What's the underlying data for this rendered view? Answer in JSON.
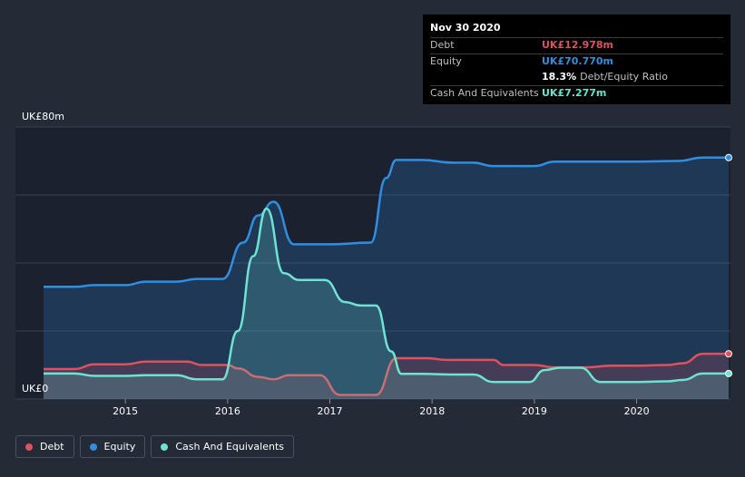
{
  "tooltip": {
    "date": "Nov 30 2020",
    "debt_label": "Debt",
    "debt_value": "UK£12.978m",
    "equity_label": "Equity",
    "equity_value": "UK£70.770m",
    "ratio_value": "18.3%",
    "ratio_label": "Debt/Equity Ratio",
    "cash_label": "Cash And Equivalents",
    "cash_value": "UK£7.277m"
  },
  "legend": {
    "debt": "Debt",
    "equity": "Equity",
    "cash": "Cash And Equivalents"
  },
  "colors": {
    "debt": "#e0505d",
    "equity": "#2f8ee0",
    "cash": "#6fe3d1"
  },
  "chart_data": {
    "type": "area",
    "ylabel_top": "UK£80m",
    "ylabel_bottom": "UK£0",
    "ylim": [
      0,
      80
    ],
    "xlim": [
      2014.2,
      2020.9
    ],
    "x_ticks": [
      2015,
      2016,
      2017,
      2018,
      2019,
      2020
    ],
    "x_tick_labels": [
      "2015",
      "2016",
      "2017",
      "2018",
      "2019",
      "2020"
    ],
    "grid": true,
    "legend_position": "bottom-left",
    "series": [
      {
        "name": "Debt",
        "key": "debt",
        "x": [
          2014.2,
          2014.5,
          2014.7,
          2015.0,
          2015.2,
          2015.4,
          2015.6,
          2015.75,
          2016.0,
          2016.1,
          2016.3,
          2016.45,
          2016.6,
          2016.9,
          2017.1,
          2017.3,
          2017.45,
          2017.65,
          2017.95,
          2018.15,
          2018.6,
          2018.7,
          2019.0,
          2019.2,
          2019.5,
          2019.75,
          2020.0,
          2020.3,
          2020.45,
          2020.65,
          2020.9
        ],
        "values": [
          8.8,
          8.8,
          10.2,
          10.2,
          11.0,
          11.0,
          11.0,
          10.0,
          10.0,
          9.0,
          6.5,
          5.8,
          7.0,
          7.0,
          1.2,
          1.2,
          1.2,
          12.0,
          12.0,
          11.5,
          11.5,
          10.0,
          10.0,
          9.3,
          9.3,
          9.8,
          9.8,
          10.0,
          10.5,
          13.3,
          13.3
        ]
      },
      {
        "name": "Equity",
        "key": "equity",
        "x": [
          2014.2,
          2014.5,
          2014.7,
          2015.0,
          2015.2,
          2015.5,
          2015.7,
          2015.95,
          2016.15,
          2016.3,
          2016.45,
          2016.65,
          2017.0,
          2017.4,
          2017.55,
          2017.65,
          2017.9,
          2018.2,
          2018.4,
          2018.6,
          2019.0,
          2019.2,
          2019.5,
          2020.0,
          2020.4,
          2020.65,
          2020.9
        ],
        "values": [
          33.0,
          33.0,
          33.5,
          33.5,
          34.5,
          34.5,
          35.3,
          35.3,
          46.0,
          54.0,
          58.0,
          45.5,
          45.5,
          46.0,
          65.0,
          70.3,
          70.3,
          69.5,
          69.5,
          68.5,
          68.5,
          69.8,
          69.8,
          69.8,
          70.0,
          71.0,
          71.0
        ]
      },
      {
        "name": "Cash And Equivalents",
        "key": "cash",
        "x": [
          2014.2,
          2014.5,
          2014.7,
          2015.0,
          2015.2,
          2015.5,
          2015.7,
          2015.95,
          2016.1,
          2016.25,
          2016.38,
          2016.55,
          2016.7,
          2016.95,
          2017.15,
          2017.3,
          2017.45,
          2017.6,
          2017.7,
          2017.9,
          2018.2,
          2018.4,
          2018.6,
          2018.95,
          2019.1,
          2019.25,
          2019.45,
          2019.65,
          2020.0,
          2020.3,
          2020.45,
          2020.65,
          2020.9
        ],
        "values": [
          7.5,
          7.5,
          6.8,
          6.8,
          7.0,
          7.0,
          5.8,
          5.8,
          20.0,
          42.0,
          56.0,
          37.0,
          35.0,
          35.0,
          28.5,
          27.5,
          27.5,
          14.0,
          7.4,
          7.4,
          7.2,
          7.2,
          5.0,
          5.0,
          8.5,
          9.2,
          9.2,
          5.0,
          5.0,
          5.2,
          5.6,
          7.5,
          7.5
        ]
      }
    ]
  }
}
